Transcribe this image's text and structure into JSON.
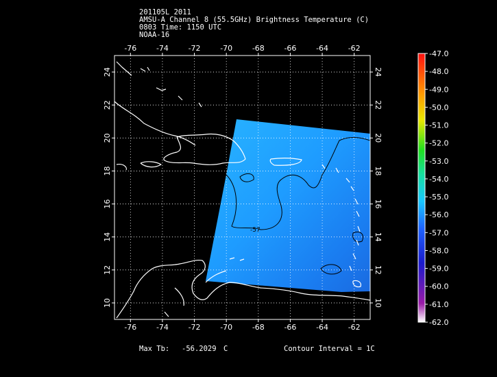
{
  "header": {
    "line1": "201105L 2011",
    "line2": "AMSU-A Channel 8 (55.5GHz) Brightness Temperature (C)",
    "line3": "0803 Time: 1150 UTC",
    "line4": "NOAA-16"
  },
  "map": {
    "lon_ticks": [
      -76,
      -74,
      -72,
      -70,
      -68,
      -66,
      -64,
      -62
    ],
    "lat_ticks": [
      10,
      12,
      14,
      16,
      18,
      20,
      22,
      24
    ],
    "lon_range": [
      -77.0,
      -61.0
    ],
    "lat_range": [
      9.0,
      25.0
    ],
    "grid": true,
    "swath_fill": "#1e9fff",
    "coast_color": "#ffffff",
    "contour_label": "-57"
  },
  "colorbar": {
    "labels": [
      "-47.0",
      "-48.0",
      "-49.0",
      "-50.0",
      "-51.0",
      "-52.0",
      "-53.0",
      "-54.0",
      "-55.0",
      "-56.0",
      "-57.0",
      "-58.0",
      "-59.0",
      "-60.0",
      "-61.0",
      "-62.0"
    ]
  },
  "footer": {
    "max_tb_label": "Max Tb:",
    "max_tb_value": "-56.2029",
    "max_tb_unit": "C",
    "contour_interval": "Contour Interval = 1C"
  }
}
